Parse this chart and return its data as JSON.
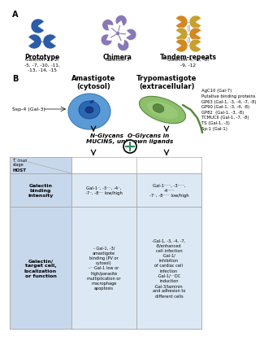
{
  "panel_a_label": "A",
  "panel_b_label": "B",
  "prototype_label": "Prototype",
  "prototype_text": "Galectin-1, -2,\n-5, -7, -10, -11,\n-13, -14, -15",
  "chimera_label": "Chimera",
  "chimera_text": "Galectin-3",
  "tandem_label": "Tandem-repeats",
  "tandem_text": "Galectin-4, -6, -8,\n-9, -12",
  "prototype_color": "#2a5ca8",
  "chimera_color": "#8878b8",
  "tandem_color1": "#d48820",
  "tandem_color2": "#c8a030",
  "amastigote_label": "Amastigote\n(cytosol)",
  "trypo_label": "Trypomastigote\n(extracellular)",
  "n_glycan_label": "N-Glycans  O-Glycans in\nMUCINS, unknown ligands",
  "ssp4_label": "Ssp-4 (Gal-3)",
  "right_labels": "AgC10 (Gal-7)\nPutative binding proteins\nGP63 (Gal-1, -3, -4, -7, -8)\nGP90 (Gal-1, -3, -4, -8)\nGP82  (Gal-1, -3, -8)\nTCMUCII (Gal-1, -7, -8)\nTS (Gal-1, -3)\nSp-1 (Gal-1)",
  "t_cruzi_stage": "T. cruzi\nstage",
  "host_label": "HOST",
  "row1_label": "Galectin\nbinding\nintensity",
  "row1_col1": "Gal-1⁻, -3⁻⁻, -4⁻,\n-7⁻, -8⁻⁻ low/high",
  "row1_col2": "Gal-1⁻⁻⁻, -3⁻⁻⁻,\n-4⁻⁻⁻\n-7⁻, -8⁻⁻⁻ low/high",
  "row2_label": "Galectin/\ntarget cell,\nlocalization\nor function",
  "row2_col1": "- Gal-1, -3/\namastigote\nbinding (PV or\ncytosol)\n-⁻⁻Gal-1 low or\nhigh/parasite\nmultiplication or\nmacrophage\napoptosis",
  "row2_col2": "-Gal-1, -3, -4, -7,\n-8/enhanced\ncell infection\n-Gal-1/\ninhibition\nof cardiac cell\ninfection\n-Gal-1/⁻⁻DC\ninduction\n-Gal-3/laminin\nand adhesion to\ndifferent cells",
  "table_header_bg": "#c8d8ec",
  "table_row_bg": "#dce9f5",
  "table_border": "#aaaaaa",
  "background": "#ffffff"
}
